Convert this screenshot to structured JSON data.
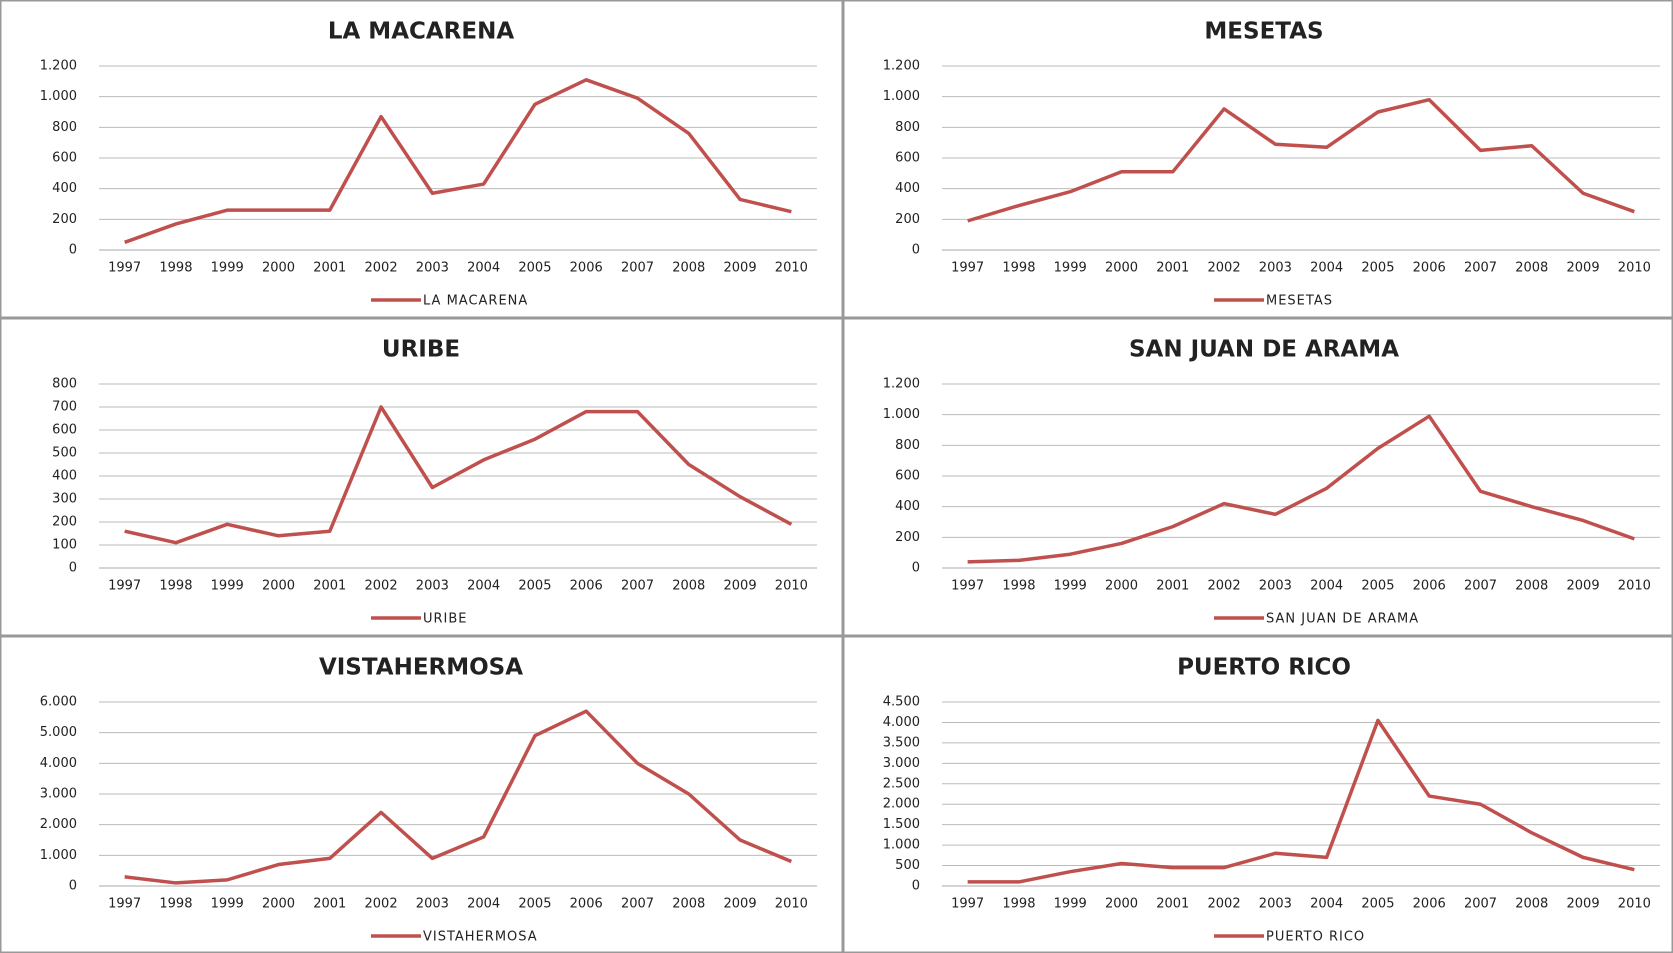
{
  "chart_data": [
    {
      "type": "line",
      "title": "LA MACARENA",
      "categories": [
        "1997",
        "1998",
        "1999",
        "2000",
        "2001",
        "2002",
        "2003",
        "2004",
        "2005",
        "2006",
        "2007",
        "2008",
        "2009",
        "2010"
      ],
      "series": [
        {
          "name": "LA MACARENA",
          "color": "#c0504d",
          "values": [
            50,
            170,
            260,
            260,
            260,
            870,
            370,
            430,
            950,
            1110,
            990,
            760,
            330,
            250
          ]
        }
      ],
      "ylim": [
        0,
        1200
      ],
      "yticks": [
        0,
        200,
        400,
        600,
        800,
        {
          "value": 1000,
          "label": "1.000"
        },
        {
          "value": 1200,
          "label": "1.200"
        }
      ],
      "grid": true,
      "legend": "bottom"
    },
    {
      "type": "line",
      "title": "MESETAS",
      "categories": [
        "1997",
        "1998",
        "1999",
        "2000",
        "2001",
        "2002",
        "2003",
        "2004",
        "2005",
        "2006",
        "2007",
        "2008",
        "2009",
        "2010"
      ],
      "series": [
        {
          "name": "MESETAS",
          "color": "#c0504d",
          "values": [
            190,
            290,
            380,
            510,
            510,
            920,
            690,
            670,
            900,
            980,
            650,
            680,
            370,
            250
          ]
        }
      ],
      "ylim": [
        0,
        1200
      ],
      "yticks": [
        0,
        200,
        400,
        600,
        800,
        {
          "value": 1000,
          "label": "1.000"
        },
        {
          "value": 1200,
          "label": "1.200"
        }
      ],
      "grid": true,
      "legend": "bottom"
    },
    {
      "type": "line",
      "title": "URIBE",
      "categories": [
        "1997",
        "1998",
        "1999",
        "2000",
        "2001",
        "2002",
        "2003",
        "2004",
        "2005",
        "2006",
        "2007",
        "2008",
        "2009",
        "2010"
      ],
      "series": [
        {
          "name": "URIBE",
          "color": "#c0504d",
          "values": [
            160,
            110,
            190,
            140,
            160,
            700,
            350,
            470,
            560,
            680,
            680,
            450,
            310,
            190
          ]
        }
      ],
      "ylim": [
        0,
        800
      ],
      "yticks": [
        0,
        100,
        200,
        300,
        400,
        500,
        600,
        700,
        800
      ],
      "grid": true,
      "legend": "bottom"
    },
    {
      "type": "line",
      "title": "SAN JUAN DE ARAMA",
      "categories": [
        "1997",
        "1998",
        "1999",
        "2000",
        "2001",
        "2002",
        "2003",
        "2004",
        "2005",
        "2006",
        "2007",
        "2008",
        "2009",
        "2010"
      ],
      "series": [
        {
          "name": "SAN JUAN DE ARAMA",
          "color": "#c0504d",
          "values": [
            40,
            50,
            90,
            160,
            270,
            420,
            350,
            520,
            780,
            990,
            500,
            400,
            310,
            190
          ]
        }
      ],
      "ylim": [
        0,
        1200
      ],
      "yticks": [
        0,
        200,
        400,
        600,
        800,
        {
          "value": 1000,
          "label": "1.000"
        },
        {
          "value": 1200,
          "label": "1.200"
        }
      ],
      "grid": true,
      "legend": "bottom"
    },
    {
      "type": "line",
      "title": "VISTAHERMOSA",
      "categories": [
        "1997",
        "1998",
        "1999",
        "2000",
        "2001",
        "2002",
        "2003",
        "2004",
        "2005",
        "2006",
        "2007",
        "2008",
        "2009",
        "2010"
      ],
      "series": [
        {
          "name": "VISTAHERMOSA",
          "color": "#c0504d",
          "values": [
            300,
            100,
            200,
            700,
            900,
            2400,
            900,
            1600,
            4900,
            5700,
            4000,
            3000,
            1500,
            800
          ]
        }
      ],
      "ylim": [
        0,
        6000
      ],
      "yticks": [
        0,
        {
          "value": 1000,
          "label": "1.000"
        },
        {
          "value": 2000,
          "label": "2.000"
        },
        {
          "value": 3000,
          "label": "3.000"
        },
        {
          "value": 4000,
          "label": "4.000"
        },
        {
          "value": 5000,
          "label": "5.000"
        },
        {
          "value": 6000,
          "label": "6.000"
        }
      ],
      "grid": true,
      "legend": "bottom"
    },
    {
      "type": "line",
      "title": "PUERTO RICO",
      "categories": [
        "1997",
        "1998",
        "1999",
        "2000",
        "2001",
        "2002",
        "2003",
        "2004",
        "2005",
        "2006",
        "2007",
        "2008",
        "2009",
        "2010"
      ],
      "series": [
        {
          "name": "PUERTO RICO",
          "color": "#c0504d",
          "values": [
            100,
            100,
            350,
            550,
            450,
            450,
            800,
            700,
            4050,
            2200,
            2000,
            1300,
            700,
            400
          ]
        }
      ],
      "ylim": [
        0,
        4500
      ],
      "yticks": [
        0,
        500,
        {
          "value": 1000,
          "label": "1.000"
        },
        {
          "value": 1500,
          "label": "1.500"
        },
        {
          "value": 2000,
          "label": "2.000"
        },
        {
          "value": 2500,
          "label": "2.500"
        },
        {
          "value": 3000,
          "label": "3.000"
        },
        {
          "value": 3500,
          "label": "3.500"
        },
        {
          "value": 4000,
          "label": "4.000"
        },
        {
          "value": 4500,
          "label": "4.500"
        }
      ],
      "grid": true,
      "legend": "bottom"
    }
  ]
}
